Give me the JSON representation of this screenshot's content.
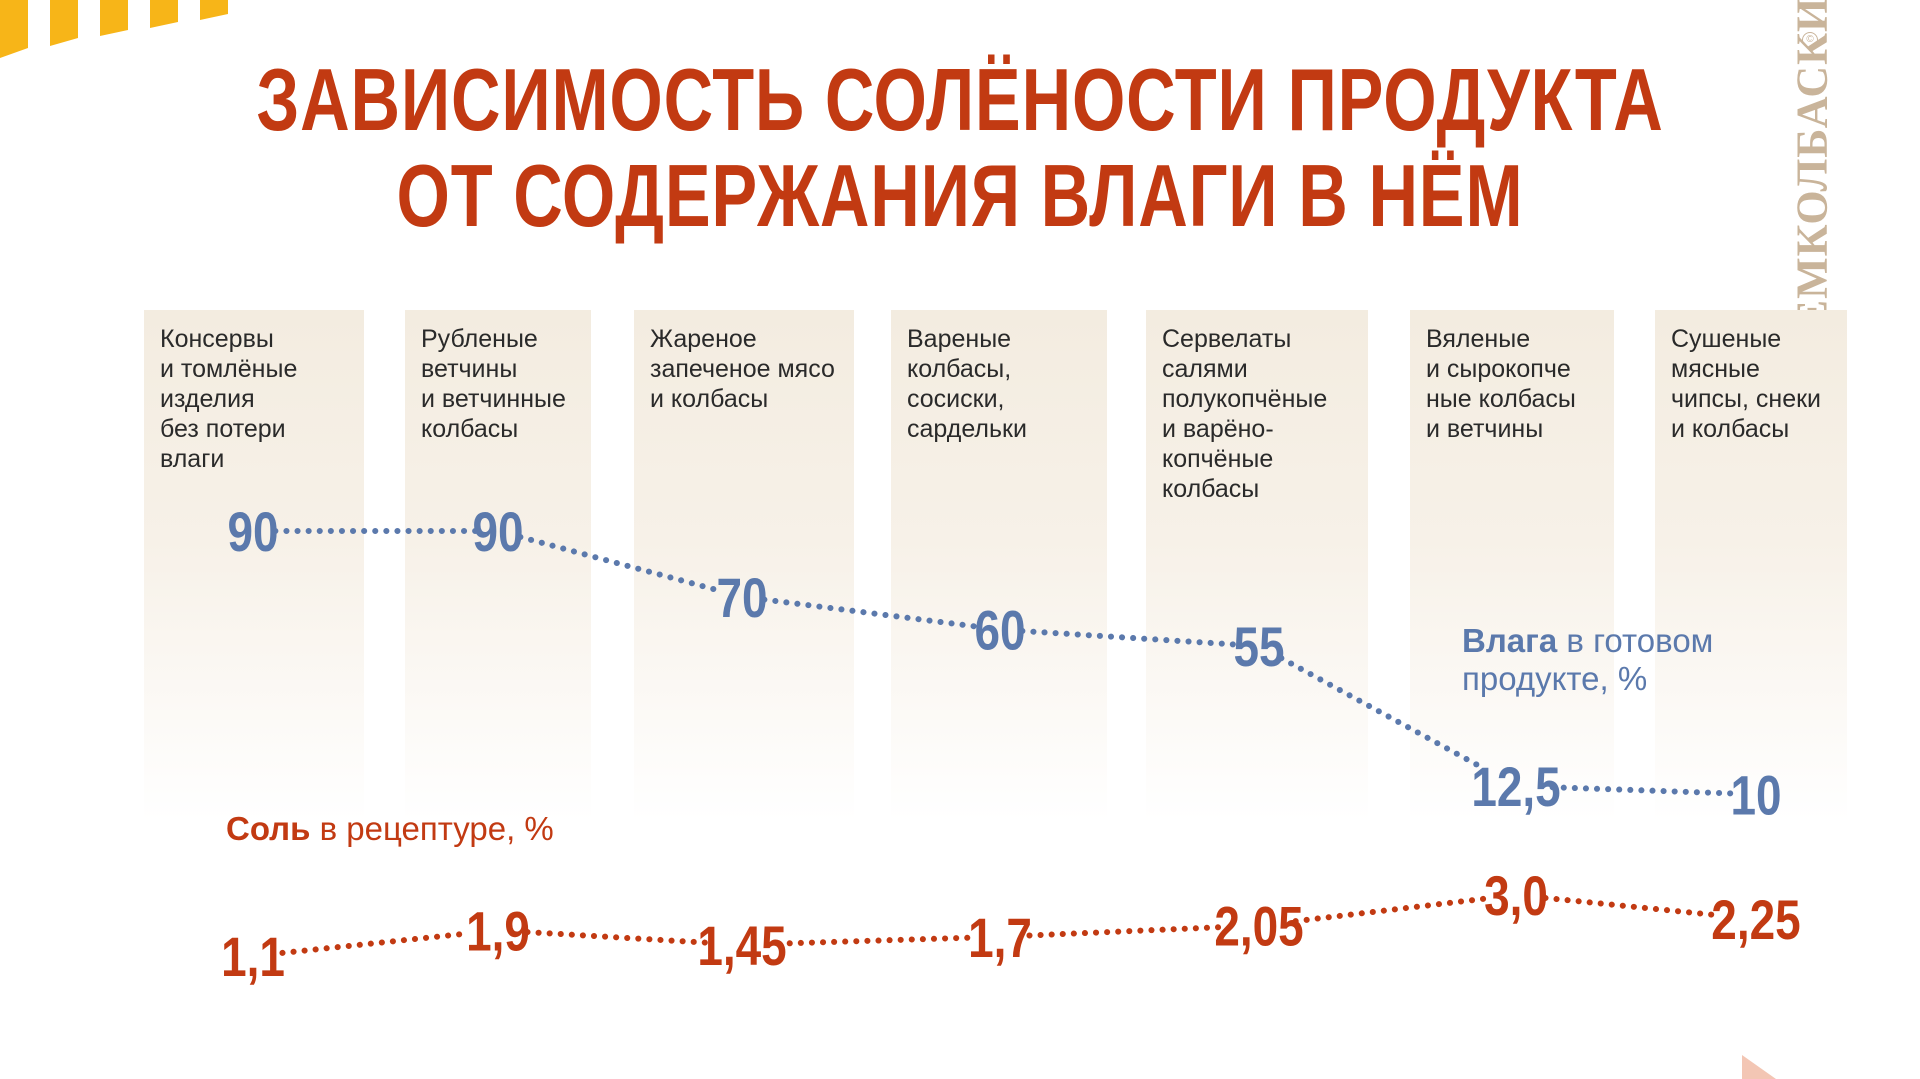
{
  "title": {
    "line1": "ЗАВИСИМОСТЬ СОЛЁНОСТИ ПРОДУКТА",
    "line2": "ОТ СОДЕРЖАНИЯ ВЛАГИ В НЁМ"
  },
  "brand": "ЕМКОЛБАСКИ",
  "colors": {
    "title": "#c23a12",
    "moisture": "#5b79ac",
    "salt": "#c23a12",
    "column_bg": "#f3ece0",
    "stripes": "#f7b518"
  },
  "chart_data": {
    "type": "line",
    "categories": [
      [
        "Консервы",
        "и томлёные",
        "изделия",
        "без потери",
        "влаги"
      ],
      [
        "Рубленые",
        "ветчины",
        "и ветчинные",
        "колбасы"
      ],
      [
        "Жареное",
        "запеченое мясо",
        "и колбасы"
      ],
      [
        "Вареные",
        "колбасы,",
        "сосиски,",
        "сардельки"
      ],
      [
        "Сервелаты",
        "салями",
        "полукопчёные",
        "и варёно-",
        "копчёные",
        "колбасы"
      ],
      [
        "Вяленые",
        "и сырокопче",
        "ные колбасы",
        "и ветчины"
      ],
      [
        "Сушеные",
        "мясные",
        "чипсы, снеки",
        "и колбасы"
      ]
    ],
    "series": [
      {
        "key": "moisture",
        "name_bold": "Влага",
        "name_rest": " в готовом",
        "name_line2": "продукте, %",
        "labels": [
          "90",
          "90",
          "70",
          "60",
          "55",
          "12,5",
          "10"
        ],
        "values": [
          90,
          90,
          70,
          60,
          55,
          12.5,
          10
        ]
      },
      {
        "key": "salt",
        "name_bold": "Соль",
        "name_rest": " в рецептуре, %",
        "labels": [
          "1,1",
          "1,9",
          "1,45",
          "1,7",
          "2,05",
          "3,0",
          "2,25"
        ],
        "values": [
          1.1,
          1.9,
          1.45,
          1.7,
          2.05,
          3.0,
          2.25
        ]
      }
    ],
    "line_style": "dotted",
    "grid": false
  }
}
